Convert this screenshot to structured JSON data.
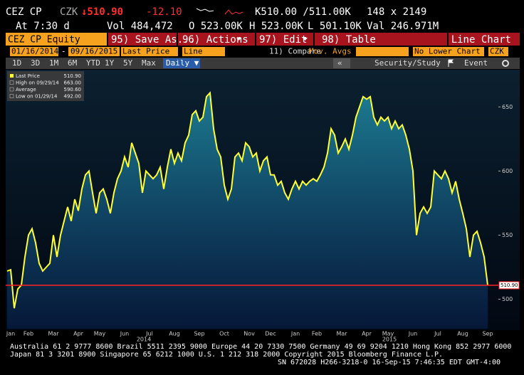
{
  "header": {
    "ticker": "CEZ CP",
    "currency": "CZK",
    "last": "↓510.90",
    "change": "-12.10",
    "bid_ask": "K510.00 /511.00K",
    "size": "148 x 2149",
    "time": "At 7:30 d",
    "volume": "Vol 484,472",
    "open": "O 523.00K",
    "high": "H 523.00K",
    "low": "L 501.10K",
    "value": "Val 246.971M"
  },
  "menu": {
    "security": "CEZ CP Equity",
    "buttons": [
      "95) Save As...",
      "96) Actions",
      "97) Edit",
      "98) Table"
    ],
    "view": "Line Chart"
  },
  "controls": {
    "start": "01/16/2014",
    "end": "09/16/2015",
    "field": "Last Price",
    "style": "Line",
    "compare": "11) Compare",
    "studies": "Mov. Avgs",
    "lower": "No Lower Chart",
    "currency": "CZK"
  },
  "periods": {
    "items": [
      "1D",
      "3D",
      "1M",
      "6M",
      "YTD",
      "1Y",
      "5Y",
      "Max"
    ],
    "frequency": "Daily ▼",
    "collapse": "«",
    "security_study": "Security/Study",
    "event": "Event"
  },
  "chart_data": {
    "type": "line",
    "color": "#ffff33",
    "legend_stats": [
      {
        "label": "Last Price",
        "value": "510.90"
      },
      {
        "label": "High on 09/29/14",
        "value": "663.00"
      },
      {
        "label": "Average",
        "value": "590.60"
      },
      {
        "label": "Low on 01/29/14",
        "value": "492.00"
      }
    ],
    "categories": [
      null,
      "Jan",
      null,
      null,
      null,
      null,
      "Feb",
      null,
      null,
      null,
      null,
      null,
      null,
      "Mar",
      null,
      null,
      null,
      null,
      null,
      null,
      "Apr",
      null,
      null,
      null,
      null,
      null,
      "May",
      null,
      null,
      null,
      null,
      null,
      null,
      "Jun",
      null,
      null,
      null,
      null,
      null,
      null,
      "Jul",
      null,
      null,
      null,
      null,
      null,
      null,
      "Aug",
      null,
      null,
      null,
      null,
      null,
      null,
      "Sep",
      null,
      null,
      null,
      null,
      null,
      null,
      "Oct",
      null,
      null,
      null,
      null,
      null,
      null,
      "Nov",
      null,
      null,
      null,
      null,
      null,
      "Dec",
      null,
      null,
      null,
      null,
      null,
      null,
      "Jan",
      null,
      null,
      null,
      null,
      null,
      "Feb",
      null,
      null,
      null,
      null,
      null,
      null,
      "Mar",
      null,
      null,
      null,
      null,
      null,
      null,
      "Apr",
      null,
      null,
      null,
      null,
      null,
      "May",
      null,
      null,
      null,
      null,
      null,
      null,
      "Jun",
      null,
      null,
      null,
      null,
      null,
      null,
      "Jul",
      null,
      null,
      null,
      null,
      null,
      null,
      "Aug",
      null,
      null,
      null,
      null,
      null,
      null,
      "Sep"
    ],
    "values": [
      522,
      523,
      493,
      508,
      511,
      533,
      550,
      555,
      544,
      528,
      522,
      525,
      528,
      550,
      533,
      550,
      561,
      572,
      561,
      578,
      569,
      586,
      597,
      600,
      583,
      567,
      583,
      586,
      578,
      567,
      583,
      594,
      600,
      611,
      603,
      622,
      614,
      606,
      583,
      600,
      597,
      594,
      597,
      603,
      586,
      603,
      617,
      606,
      614,
      608,
      622,
      628,
      644,
      647,
      639,
      642,
      658,
      661,
      633,
      617,
      611,
      589,
      578,
      586,
      611,
      614,
      608,
      622,
      619,
      611,
      614,
      600,
      608,
      611,
      597,
      597,
      589,
      592,
      583,
      578,
      586,
      592,
      586,
      592,
      589,
      592,
      594,
      592,
      597,
      603,
      614,
      633,
      628,
      614,
      619,
      625,
      617,
      628,
      642,
      650,
      658,
      656,
      658,
      642,
      636,
      642,
      639,
      642,
      633,
      639,
      633,
      636,
      628,
      617,
      600,
      550,
      567,
      572,
      567,
      572,
      600,
      597,
      594,
      600,
      594,
      583,
      592,
      578,
      567,
      555,
      533,
      550,
      553,
      544,
      533,
      510.9
    ],
    "year_labels": [
      "2014",
      "2015"
    ],
    "ylim": [
      477,
      679
    ],
    "yticks": [
      500,
      550,
      600,
      650
    ],
    "reference_line": {
      "value": 510.9,
      "label": "510.90",
      "color": "#ff2020"
    }
  },
  "footer": {
    "lines": [
      "Australia 61 2 9777 8600 Brazil 5511 2395 9000 Europe 44 20 7330 7500 Germany 49 69 9204 1210 Hong Kong 852 2977 6000",
      "Japan 81 3 3201 8900       Singapore 65 6212 1000       U.S. 1 212 318 2000         Copyright 2015 Bloomberg Finance L.P.",
      "SN 672028 H266-3218-0 16-Sep-15  7:46:35 EDT  GMT-4:00"
    ]
  }
}
